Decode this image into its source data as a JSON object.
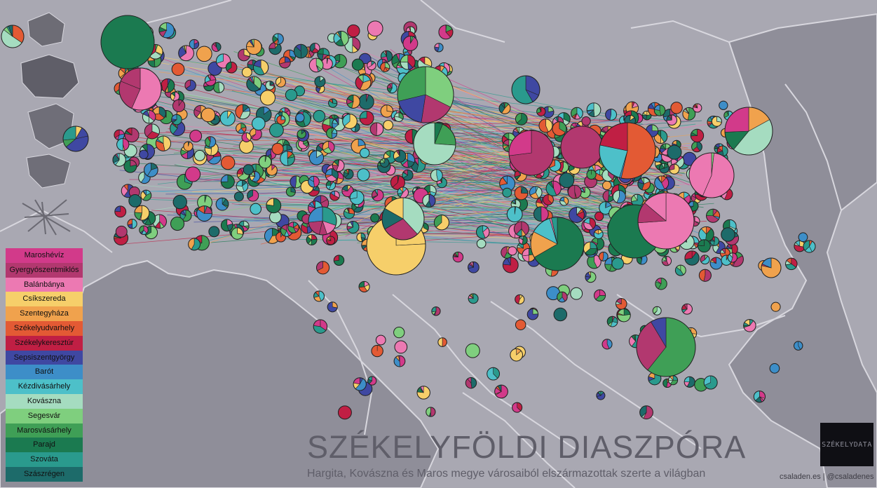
{
  "title": "SZÉKELYFÖLDI DIASZPÓRA",
  "subtitle": "Hargita, Kovászna és Maros megye városaiból elszármazottak szerte a világban",
  "credit": "csaladen.es | @csaladenes",
  "logo_text": "SZÉKELYDATA",
  "legend": [
    {
      "label": "Maroshévíz",
      "color": "#d23a8a"
    },
    {
      "label": "Gyergyószentmiklós",
      "color": "#b2386f"
    },
    {
      "label": "Balánbánya",
      "color": "#ec79b2"
    },
    {
      "label": "Csíkszereda",
      "color": "#f6cf6a"
    },
    {
      "label": "Szentegyháza",
      "color": "#f0a24d"
    },
    {
      "label": "Székelyudvarhely",
      "color": "#e35a34"
    },
    {
      "label": "Székelykeresztúr",
      "color": "#c01f44"
    },
    {
      "label": "Sepsiszentgyörgy",
      "color": "#3f48a2"
    },
    {
      "label": "Barót",
      "color": "#3d8ec8"
    },
    {
      "label": "Kézdivásárhely",
      "color": "#4dc0c9"
    },
    {
      "label": "Kovászna",
      "color": "#a5dcc0"
    },
    {
      "label": "Segesvár",
      "color": "#7fcf7e"
    },
    {
      "label": "Marosvásárhely",
      "color": "#3f9f56"
    },
    {
      "label": "Parajd",
      "color": "#1b7a50"
    },
    {
      "label": "Szováta",
      "color": "#2a9a8d"
    },
    {
      "label": "Szászrégen",
      "color": "#1d6b6a"
    }
  ]
}
